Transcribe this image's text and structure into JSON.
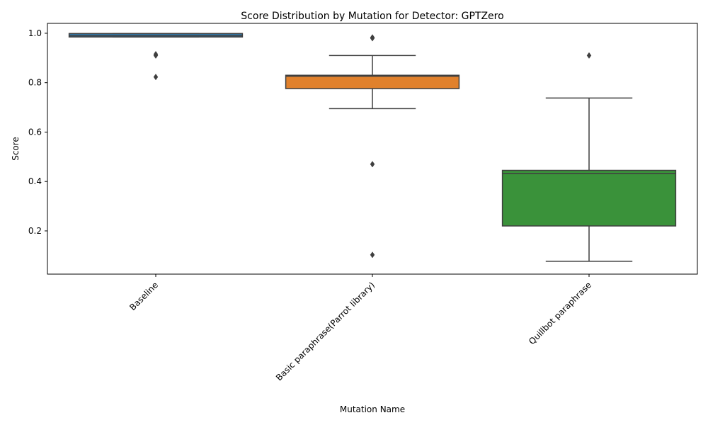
{
  "chart_data": {
    "type": "box",
    "title": "Score Distribution by Mutation for Detector: GPTZero",
    "xlabel": "Mutation Name",
    "ylabel": "Score",
    "ylim": [
      0.025,
      1.04
    ],
    "yticks": [
      0.2,
      0.4,
      0.6,
      0.8,
      1.0
    ],
    "ytick_labels": [
      "0.2",
      "0.4",
      "0.6",
      "0.8",
      "1.0"
    ],
    "grid": false,
    "legend": "none",
    "categories": [
      "Baseline",
      "Basic paraphrase(Parrot library)",
      "Quillbot paraphrase"
    ],
    "boxes": [
      {
        "category": "Baseline",
        "color": "#3274a1",
        "whisker_low": 0.985,
        "q1": 0.985,
        "median": 0.99,
        "q3": 0.999,
        "whisker_high": 0.999,
        "outliers": [
          0.915,
          0.91,
          0.823
        ]
      },
      {
        "category": "Basic paraphrase(Parrot library)",
        "color": "#e1812c",
        "whisker_low": 0.695,
        "q1": 0.776,
        "median": 0.826,
        "q3": 0.83,
        "whisker_high": 0.91,
        "outliers": [
          0.983,
          0.98,
          0.47,
          0.103
        ]
      },
      {
        "category": "Quillbot paraphrase",
        "color": "#3a923a",
        "whisker_low": 0.077,
        "q1": 0.22,
        "median": 0.433,
        "q3": 0.445,
        "whisker_high": 0.738,
        "outliers": [
          0.91
        ]
      }
    ]
  }
}
